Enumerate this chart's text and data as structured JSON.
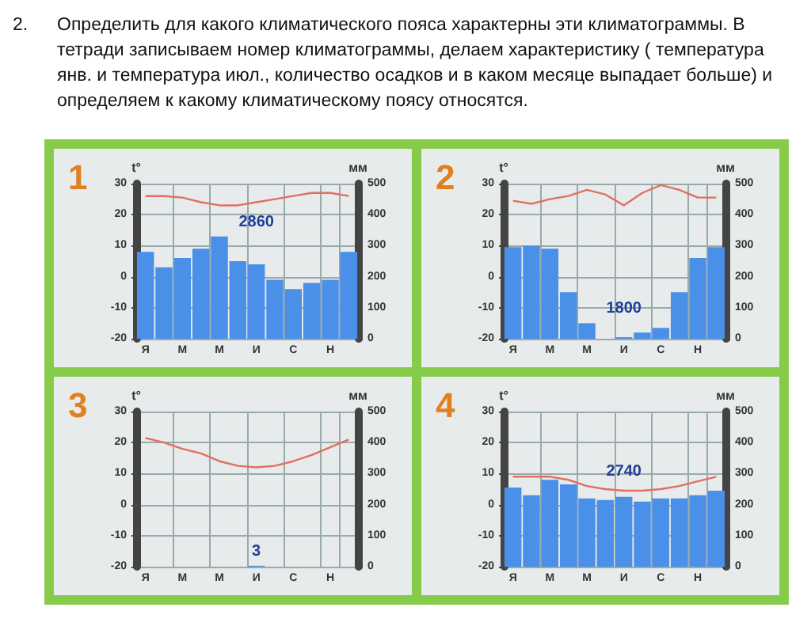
{
  "chart_data": [
    {
      "type": "other",
      "title": "Определить для какого климатического пояса характерны эти  климатограммы. В тетради записываем номер климатограммы, делаем характеристику ( температура янв. и температура июл., количество осадков и в каком месяце выпадает больше) и определяем к какому климатическому поясу относятся.",
      "subtitle": "2."
    },
    {
      "type": "bar",
      "title": "1",
      "ylabel": "t°",
      "y2label": "мм",
      "categories": [
        "Я",
        null,
        "М",
        null,
        "М",
        null,
        "И",
        null,
        "С",
        null,
        "Н",
        null
      ],
      "ylim": [
        -20,
        30
      ],
      "yticks": [
        -20,
        -10,
        0,
        10,
        20,
        30
      ],
      "y2lim": [
        0,
        500
      ],
      "y2ticks": [
        0,
        100,
        200,
        300,
        400,
        500
      ],
      "grid": true,
      "annotations": [
        "2860"
      ],
      "series": [
        {
          "type": "bar",
          "axis": "y2",
          "color": "#4a8fe8",
          "values": [
            280,
            230,
            260,
            290,
            330,
            250,
            240,
            190,
            160,
            180,
            190,
            280
          ]
        },
        {
          "type": "line",
          "axis": "y",
          "color": "#e07060",
          "marker": "none",
          "values": [
            26,
            26,
            25.5,
            24,
            23,
            23,
            24,
            25,
            26,
            27,
            27,
            26
          ]
        }
      ]
    },
    {
      "type": "bar",
      "title": "2",
      "ylabel": "t°",
      "y2label": "мм",
      "categories": [
        "Я",
        null,
        "М",
        null,
        "М",
        null,
        "И",
        null,
        "С",
        null,
        "Н",
        null
      ],
      "ylim": [
        -20,
        30
      ],
      "yticks": [
        -20,
        -10,
        0,
        10,
        20,
        30
      ],
      "y2lim": [
        0,
        500
      ],
      "y2ticks": [
        0,
        100,
        200,
        300,
        400,
        500
      ],
      "grid": true,
      "annotations": [
        "1800"
      ],
      "series": [
        {
          "type": "bar",
          "axis": "y2",
          "color": "#4a8fe8",
          "values": [
            295,
            300,
            290,
            150,
            50,
            null,
            5,
            20,
            35,
            150,
            260,
            295
          ]
        },
        {
          "type": "line",
          "axis": "y",
          "color": "#e07060",
          "marker": "none",
          "values": [
            24.5,
            23.5,
            25,
            26,
            28,
            26.5,
            23,
            27,
            29.5,
            28,
            25.5,
            25.5
          ]
        }
      ]
    },
    {
      "type": "bar",
      "title": "3",
      "ylabel": "t°",
      "y2label": "мм",
      "categories": [
        "Я",
        null,
        "М",
        null,
        "М",
        null,
        "И",
        null,
        "С",
        null,
        "Н",
        null
      ],
      "ylim": [
        -20,
        30
      ],
      "yticks": [
        -20,
        -10,
        0,
        10,
        20,
        30
      ],
      "y2lim": [
        0,
        500
      ],
      "y2ticks": [
        0,
        100,
        200,
        300,
        400,
        500
      ],
      "grid": true,
      "annotations": [
        "3"
      ],
      "series": [
        {
          "type": "bar",
          "axis": "y2",
          "color": "#4a8fe8",
          "values": [
            null,
            null,
            null,
            null,
            null,
            null,
            3,
            null,
            null,
            null,
            null,
            null
          ]
        },
        {
          "type": "line",
          "axis": "y",
          "color": "#e07060",
          "marker": "none",
          "values": [
            21.5,
            20,
            18,
            16.5,
            14,
            12.5,
            12,
            12.5,
            14,
            16,
            18.5,
            21
          ]
        }
      ]
    },
    {
      "type": "bar",
      "title": "4",
      "ylabel": "t°",
      "y2label": "мм",
      "categories": [
        "Я",
        null,
        "М",
        null,
        "М",
        null,
        "И",
        null,
        "С",
        null,
        "Н",
        null
      ],
      "ylim": [
        -20,
        30
      ],
      "yticks": [
        -20,
        -10,
        0,
        10,
        20,
        30
      ],
      "y2lim": [
        0,
        500
      ],
      "y2ticks": [
        0,
        100,
        200,
        300,
        400,
        500
      ],
      "grid": true,
      "annotations": [
        "2740"
      ],
      "series": [
        {
          "type": "bar",
          "axis": "y2",
          "color": "#4a8fe8",
          "values": [
            255,
            230,
            280,
            265,
            220,
            215,
            225,
            210,
            220,
            220,
            230,
            245
          ]
        },
        {
          "type": "line",
          "axis": "y",
          "color": "#e07060",
          "marker": "none",
          "values": [
            9,
            9,
            9,
            8,
            6,
            5,
            4.5,
            4.5,
            5,
            6,
            7.5,
            9
          ]
        }
      ]
    }
  ]
}
